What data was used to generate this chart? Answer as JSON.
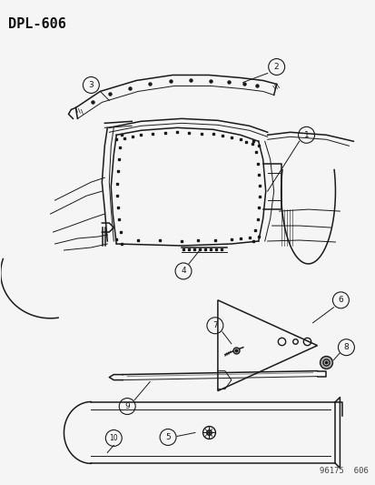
{
  "title": "DPL-606",
  "footer": "96175  606",
  "bg_color": "#f5f5f5",
  "title_fontsize": 11,
  "footer_fontsize": 6.5,
  "line_color": "#1a1a1a"
}
